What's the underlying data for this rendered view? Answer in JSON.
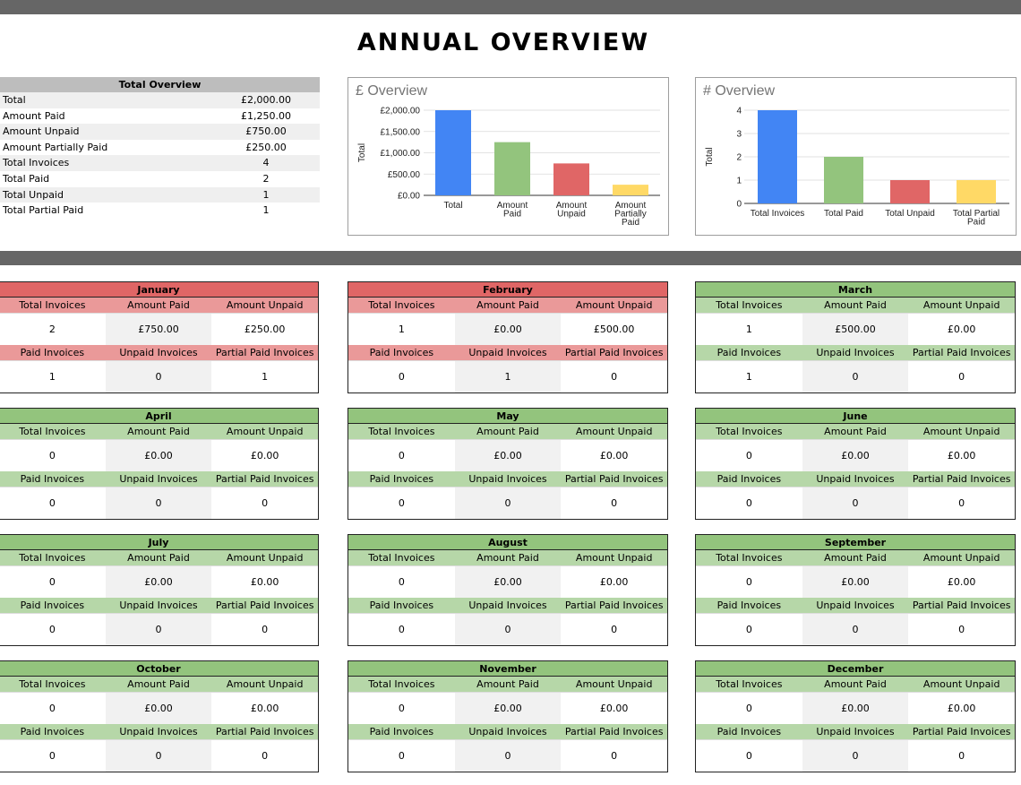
{
  "page_title": "ANNUAL OVERVIEW",
  "summary": {
    "heading": "Total Overview",
    "rows": [
      {
        "label": "Total",
        "value": "£2,000.00"
      },
      {
        "label": "Amount Paid",
        "value": "£1,250.00"
      },
      {
        "label": "Amount Unpaid",
        "value": "£750.00"
      },
      {
        "label": "Amount Partially Paid",
        "value": "£250.00"
      },
      {
        "label": "Total Invoices",
        "value": "4"
      },
      {
        "label": "Total Paid",
        "value": "2"
      },
      {
        "label": "Total Unpaid",
        "value": "1"
      },
      {
        "label": "Total Partial Paid",
        "value": "1"
      }
    ]
  },
  "colors": {
    "blue": "#4285f4",
    "green": "#93c47d",
    "red": "#e06666",
    "yellow": "#ffd966",
    "month_red_header": "#e06666",
    "month_red_label": "#ea9999",
    "month_green_header": "#93c47d",
    "month_green_label": "#b6d7a8",
    "bar": "#666666"
  },
  "chart_data": [
    {
      "type": "bar",
      "title": "£ Overview",
      "ylabel": "Total",
      "xlabel": "",
      "ylim": [
        0,
        2000
      ],
      "yticks": [
        "£0.00",
        "£500.00",
        "£1,000.00",
        "£1,500.00",
        "£2,000.00"
      ],
      "categories": [
        "Total",
        "Amount Paid",
        "Amount Unpaid",
        "Amount Partially Paid"
      ],
      "category_lines": [
        [
          "Total"
        ],
        [
          "Amount",
          "Paid"
        ],
        [
          "Amount",
          "Unpaid"
        ],
        [
          "Amount",
          "Partially",
          "Paid"
        ]
      ],
      "values": [
        2000,
        1250,
        750,
        250
      ],
      "bar_colors": [
        "#4285f4",
        "#93c47d",
        "#e06666",
        "#ffd966"
      ],
      "grid": true
    },
    {
      "type": "bar",
      "title": "# Overview",
      "ylabel": "Total",
      "xlabel": "",
      "ylim": [
        0,
        4
      ],
      "yticks": [
        "0",
        "1",
        "2",
        "3",
        "4"
      ],
      "categories": [
        "Total Invoices",
        "Total Paid",
        "Total Unpaid",
        "Total Partial Paid"
      ],
      "category_lines": [
        [
          "Total Invoices"
        ],
        [
          "Total Paid"
        ],
        [
          "Total Unpaid"
        ],
        [
          "Total Partial",
          "Paid"
        ]
      ],
      "values": [
        4,
        2,
        1,
        1
      ],
      "bar_colors": [
        "#4285f4",
        "#93c47d",
        "#e06666",
        "#ffd966"
      ],
      "grid": true
    }
  ],
  "month_labels": {
    "top": [
      "Total Invoices",
      "Amount Paid",
      "Amount Unpaid"
    ],
    "bottom": [
      "Paid Invoices",
      "Unpaid Invoices",
      "Partial Paid Invoices"
    ]
  },
  "months": [
    {
      "name": "January",
      "status": "red",
      "top": [
        "2",
        "£750.00",
        "£250.00"
      ],
      "bottom": [
        "1",
        "0",
        "1"
      ]
    },
    {
      "name": "February",
      "status": "red",
      "top": [
        "1",
        "£0.00",
        "£500.00"
      ],
      "bottom": [
        "0",
        "1",
        "0"
      ]
    },
    {
      "name": "March",
      "status": "green",
      "top": [
        "1",
        "£500.00",
        "£0.00"
      ],
      "bottom": [
        "1",
        "0",
        "0"
      ]
    },
    {
      "name": "April",
      "status": "green",
      "top": [
        "0",
        "£0.00",
        "£0.00"
      ],
      "bottom": [
        "0",
        "0",
        "0"
      ]
    },
    {
      "name": "May",
      "status": "green",
      "top": [
        "0",
        "£0.00",
        "£0.00"
      ],
      "bottom": [
        "0",
        "0",
        "0"
      ]
    },
    {
      "name": "June",
      "status": "green",
      "top": [
        "0",
        "£0.00",
        "£0.00"
      ],
      "bottom": [
        "0",
        "0",
        "0"
      ]
    },
    {
      "name": "July",
      "status": "green",
      "top": [
        "0",
        "£0.00",
        "£0.00"
      ],
      "bottom": [
        "0",
        "0",
        "0"
      ]
    },
    {
      "name": "August",
      "status": "green",
      "top": [
        "0",
        "£0.00",
        "£0.00"
      ],
      "bottom": [
        "0",
        "0",
        "0"
      ]
    },
    {
      "name": "September",
      "status": "green",
      "top": [
        "0",
        "£0.00",
        "£0.00"
      ],
      "bottom": [
        "0",
        "0",
        "0"
      ]
    },
    {
      "name": "October",
      "status": "green",
      "top": [
        "0",
        "£0.00",
        "£0.00"
      ],
      "bottom": [
        "0",
        "0",
        "0"
      ]
    },
    {
      "name": "November",
      "status": "green",
      "top": [
        "0",
        "£0.00",
        "£0.00"
      ],
      "bottom": [
        "0",
        "0",
        "0"
      ]
    },
    {
      "name": "December",
      "status": "green",
      "top": [
        "0",
        "£0.00",
        "£0.00"
      ],
      "bottom": [
        "0",
        "0",
        "0"
      ]
    }
  ]
}
